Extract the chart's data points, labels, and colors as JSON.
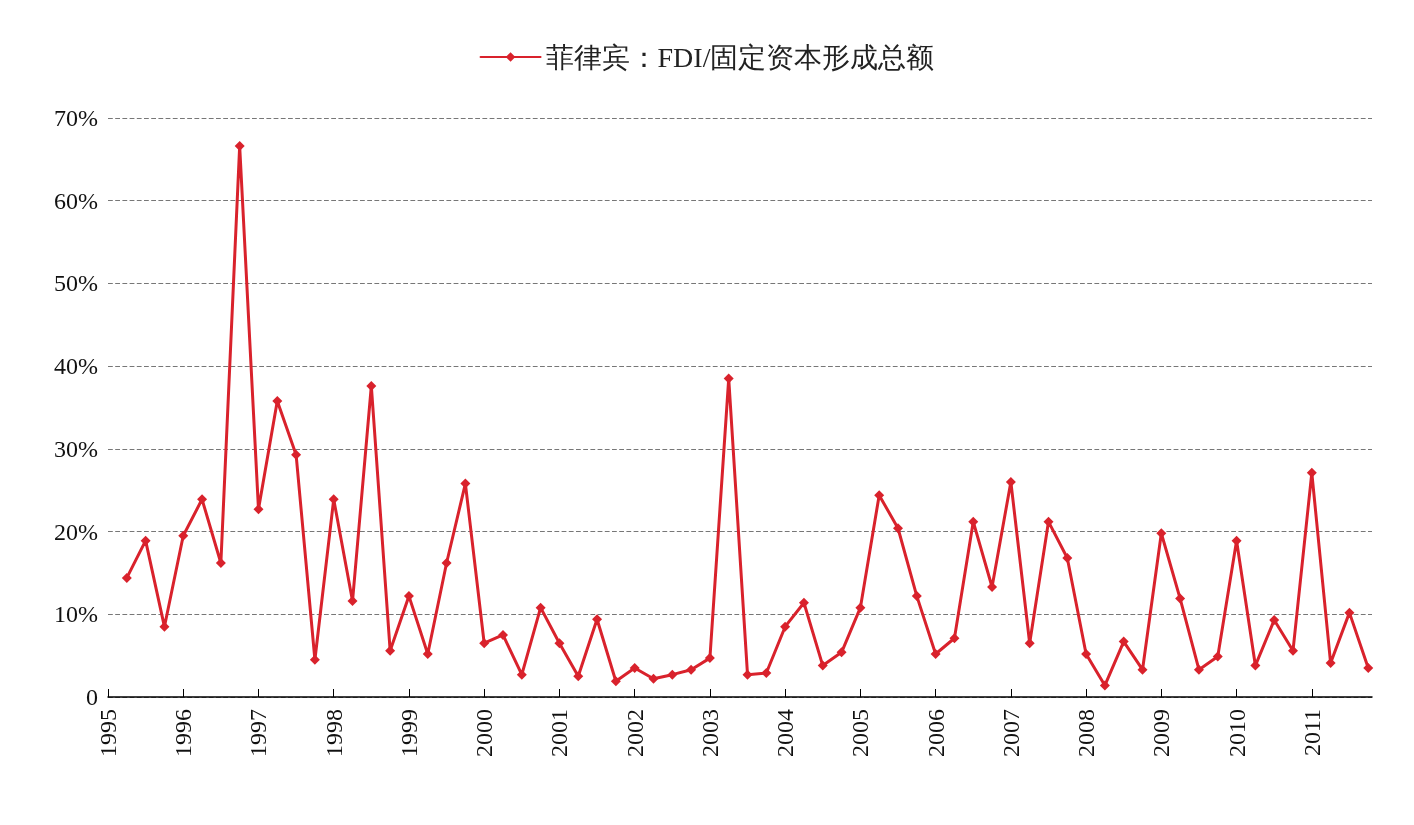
{
  "chart_data": {
    "type": "line",
    "x": [
      1995.25,
      1995.5,
      1995.75,
      1996,
      1996.25,
      1996.5,
      1996.75,
      1997,
      1997.25,
      1997.5,
      1997.75,
      1998,
      1998.25,
      1998.5,
      1998.75,
      1999,
      1999.25,
      1999.5,
      1999.75,
      2000,
      2000.25,
      2000.5,
      2000.75,
      2001,
      2001.25,
      2001.5,
      2001.75,
      2002,
      2002.25,
      2002.5,
      2002.75,
      2003,
      2003.25,
      2003.5,
      2003.75,
      2004,
      2004.25,
      2004.5,
      2004.75,
      2005,
      2005.25,
      2005.5,
      2005.75,
      2006,
      2006.25,
      2006.5,
      2006.75,
      2007,
      2007.25,
      2007.5,
      2007.75,
      2008,
      2008.25,
      2008.5,
      2008.75,
      2009,
      2009.25,
      2009.5,
      2009.75,
      2010,
      2010.25,
      2010.5,
      2010.75,
      2011,
      2011.25,
      2011.5,
      2011.75
    ],
    "series": [
      {
        "name": "菲律宾：FDI/固定资本形成总额",
        "color": "#d9222c",
        "values": [
          14.4,
          18.9,
          8.5,
          19.5,
          23.9,
          16.2,
          66.6,
          22.7,
          35.8,
          29.3,
          4.5,
          23.9,
          11.6,
          37.6,
          5.6,
          12.2,
          5.2,
          16.2,
          25.8,
          6.5,
          7.5,
          2.7,
          10.8,
          6.5,
          2.5,
          9.4,
          1.9,
          3.5,
          2.2,
          2.7,
          3.3,
          4.7,
          38.5,
          2.7,
          2.9,
          8.5,
          11.4,
          3.8,
          5.4,
          10.8,
          24.4,
          20.4,
          12.2,
          5.2,
          7.1,
          21.2,
          13.3,
          26.0,
          6.5,
          21.2,
          16.8,
          5.2,
          1.4,
          6.7,
          3.3,
          19.8,
          11.9,
          3.3,
          4.9,
          18.9,
          3.8,
          9.3,
          5.6,
          27.1,
          4.1,
          10.2,
          3.5
        ]
      }
    ],
    "xlim": [
      1995,
      2011.8
    ],
    "xticks": [
      1995,
      1996,
      1997,
      1998,
      1999,
      2000,
      2001,
      2002,
      2003,
      2004,
      2005,
      2006,
      2007,
      2008,
      2009,
      2010,
      2011
    ],
    "ylim": [
      0,
      70
    ],
    "yticks": [
      0,
      {
        "value": 10,
        "label": "10%"
      },
      {
        "value": 20,
        "label": "20%"
      },
      {
        "value": 30,
        "label": "30%"
      },
      {
        "value": 40,
        "label": "40%"
      },
      {
        "value": 50,
        "label": "50%"
      },
      {
        "value": 60,
        "label": "60%"
      },
      {
        "value": 70,
        "label": "70%"
      }
    ],
    "grid": "y",
    "legend": "top",
    "marker": "diamond",
    "line_style": "solid"
  }
}
